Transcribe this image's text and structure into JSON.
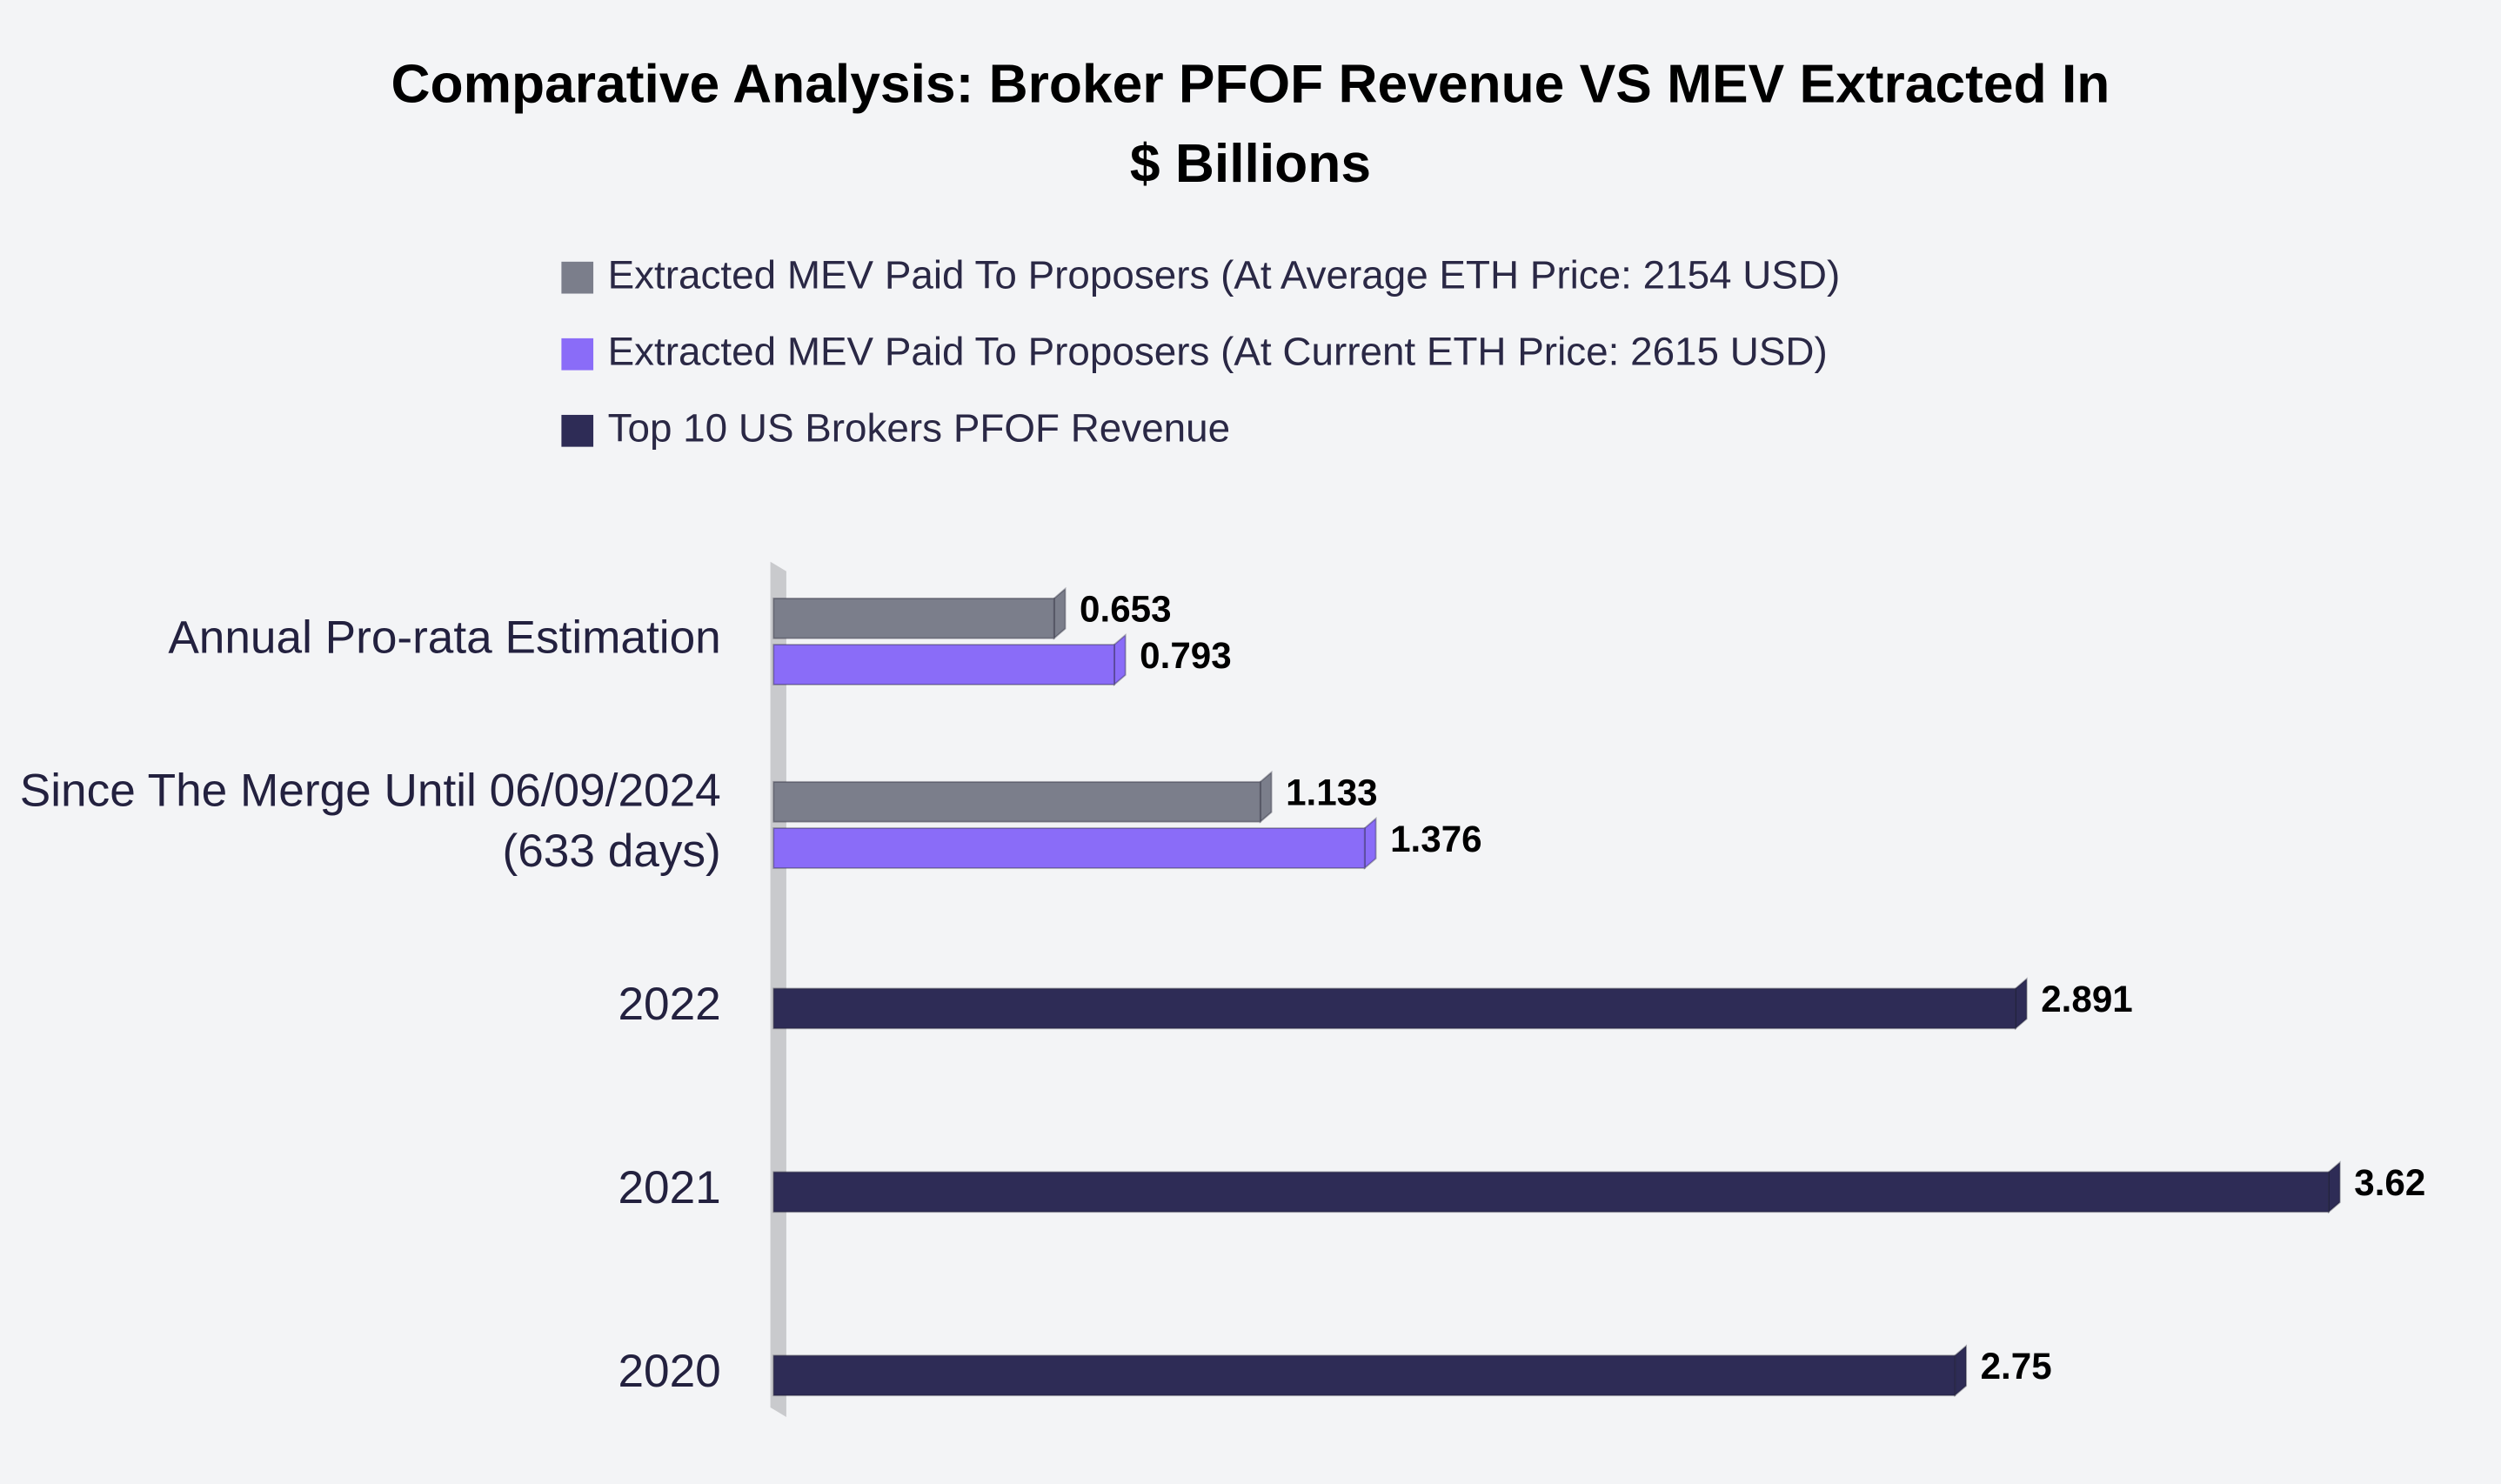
{
  "chart_data": {
    "type": "hbar",
    "title": "Comparative Analysis: Broker PFOF Revenue VS MEV Extracted In $ Billions",
    "categories": [
      "Annual Pro-rata Estimation",
      "Since The Merge Until 06/09/2024 (633 days)",
      "2022",
      "2021",
      "2020"
    ],
    "series": [
      {
        "name": "Extracted MEV Paid To Proposers (At Average ETH Price: 2154 USD)",
        "color": "#7b7e8b",
        "values": [
          0.653,
          1.133,
          null,
          null,
          null
        ]
      },
      {
        "name": "Extracted MEV Paid To Proposers (At Current ETH Price: 2615 USD)",
        "color": "#8a6cf8",
        "values": [
          0.793,
          1.376,
          null,
          null,
          null
        ]
      },
      {
        "name": "Top 10 US Brokers PFOF Revenue",
        "color": "#2e2c56",
        "values": [
          null,
          null,
          2.891,
          3.62,
          2.75
        ]
      }
    ]
  }
}
